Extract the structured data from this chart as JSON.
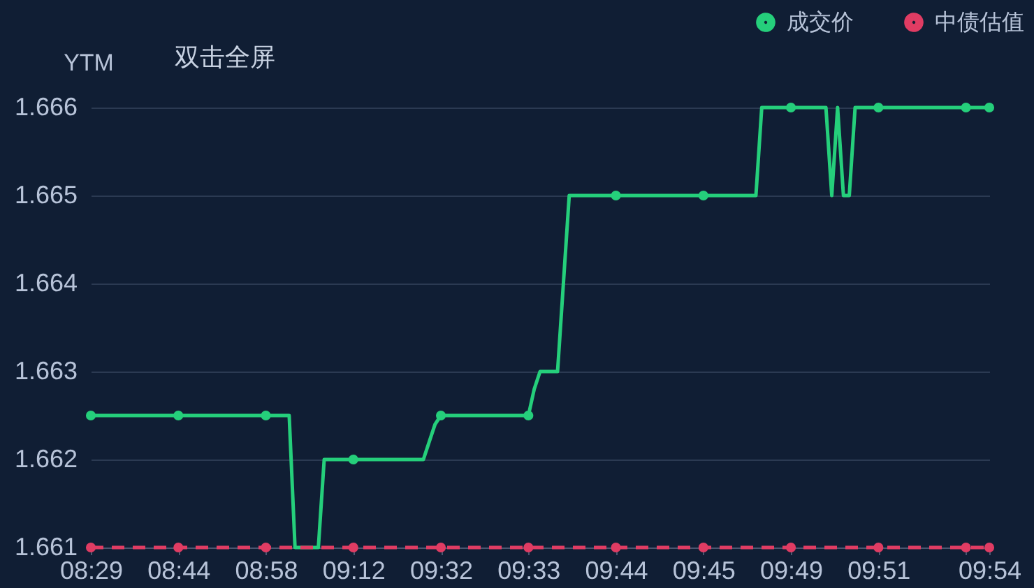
{
  "chart_data": {
    "type": "line",
    "ylabel": "YTM",
    "annotations": [
      "双击全屏"
    ],
    "categories": [
      "08:29",
      null,
      null,
      null,
      null,
      null,
      null,
      null,
      null,
      null,
      null,
      null,
      null,
      null,
      null,
      "08:44",
      null,
      null,
      null,
      null,
      null,
      null,
      null,
      null,
      null,
      null,
      null,
      null,
      null,
      null,
      "08:58",
      null,
      null,
      null,
      null,
      null,
      null,
      null,
      null,
      null,
      null,
      null,
      null,
      null,
      null,
      "09:12",
      null,
      null,
      null,
      null,
      null,
      null,
      null,
      null,
      null,
      null,
      null,
      null,
      null,
      null,
      "09:32",
      null,
      null,
      null,
      null,
      null,
      null,
      null,
      null,
      null,
      null,
      null,
      null,
      null,
      null,
      "09:33",
      null,
      null,
      null,
      null,
      null,
      null,
      null,
      null,
      null,
      null,
      null,
      null,
      null,
      null,
      "09:44",
      null,
      null,
      null,
      null,
      null,
      null,
      null,
      null,
      null,
      null,
      null,
      null,
      null,
      null,
      "09:45",
      null,
      null,
      null,
      null,
      null,
      null,
      null,
      null,
      null,
      null,
      null,
      null,
      null,
      null,
      "09:49",
      null,
      null,
      null,
      null,
      null,
      null,
      null,
      null,
      null,
      null,
      null,
      null,
      null,
      null,
      "09:51",
      null,
      null,
      null,
      null,
      null,
      null,
      null,
      null,
      null,
      null,
      null,
      null,
      null,
      null,
      null,
      null,
      null,
      null,
      "09:54"
    ],
    "series": [
      {
        "name": "成交价",
        "color": "#25cf7b",
        "line_style": "solid",
        "values": [
          1.6625,
          1.6625,
          1.6625,
          1.6625,
          1.6625,
          1.6625,
          1.6625,
          1.6625,
          1.6625,
          1.6625,
          1.6625,
          1.6625,
          1.6625,
          1.6625,
          1.6625,
          1.6625,
          1.6625,
          1.6625,
          1.6625,
          1.6625,
          1.6625,
          1.6625,
          1.6625,
          1.6625,
          1.6625,
          1.6625,
          1.6625,
          1.6625,
          1.6625,
          1.6625,
          1.6625,
          1.6625,
          1.6625,
          1.6625,
          1.6625,
          1.661,
          1.661,
          1.661,
          1.661,
          1.661,
          1.662,
          1.662,
          1.662,
          1.662,
          1.662,
          1.662,
          1.662,
          1.662,
          1.662,
          1.662,
          1.662,
          1.662,
          1.662,
          1.662,
          1.662,
          1.662,
          1.662,
          1.662,
          1.6622,
          1.6624,
          1.6625,
          1.6625,
          1.6625,
          1.6625,
          1.6625,
          1.6625,
          1.6625,
          1.6625,
          1.6625,
          1.6625,
          1.6625,
          1.6625,
          1.6625,
          1.6625,
          1.6625,
          1.6625,
          1.6628,
          1.663,
          1.663,
          1.663,
          1.663,
          1.664,
          1.665,
          1.665,
          1.665,
          1.665,
          1.665,
          1.665,
          1.665,
          1.665,
          1.665,
          1.665,
          1.665,
          1.665,
          1.665,
          1.665,
          1.665,
          1.665,
          1.665,
          1.665,
          1.665,
          1.665,
          1.665,
          1.665,
          1.665,
          1.665,
          1.665,
          1.665,
          1.665,
          1.665,
          1.665,
          1.665,
          1.665,
          1.665,
          1.665,
          1.666,
          1.666,
          1.666,
          1.666,
          1.666,
          1.666,
          1.666,
          1.666,
          1.666,
          1.666,
          1.666,
          1.666,
          1.665,
          1.666,
          1.665,
          1.665,
          1.666,
          1.666,
          1.666,
          1.666,
          1.666,
          1.666,
          1.666,
          1.666,
          1.666,
          1.666,
          1.666,
          1.666,
          1.666,
          1.666,
          1.666,
          1.666,
          1.666,
          1.666,
          1.666,
          1.666,
          1.666,
          1.666,
          1.666,
          1.666
        ]
      },
      {
        "type": "scatter",
        "color": "#25cf7b",
        "marker": "circle",
        "values": [
          1.6625,
          null,
          null,
          null,
          null,
          null,
          null,
          null,
          null,
          null,
          null,
          null,
          null,
          null,
          null,
          1.6625,
          null,
          null,
          null,
          null,
          null,
          null,
          null,
          null,
          null,
          null,
          null,
          null,
          null,
          null,
          1.6625,
          null,
          null,
          null,
          null,
          null,
          null,
          null,
          null,
          null,
          null,
          null,
          null,
          null,
          null,
          1.662,
          null,
          null,
          null,
          null,
          null,
          null,
          null,
          null,
          null,
          null,
          null,
          null,
          null,
          null,
          1.6625,
          null,
          null,
          null,
          null,
          null,
          null,
          null,
          null,
          null,
          null,
          null,
          null,
          null,
          null,
          1.6625,
          null,
          null,
          null,
          null,
          null,
          null,
          null,
          null,
          null,
          null,
          null,
          null,
          null,
          null,
          1.665,
          null,
          null,
          null,
          null,
          null,
          null,
          null,
          null,
          null,
          null,
          null,
          null,
          null,
          null,
          1.665,
          null,
          null,
          null,
          null,
          null,
          null,
          null,
          null,
          null,
          null,
          null,
          null,
          null,
          null,
          1.666,
          null,
          null,
          null,
          null,
          null,
          null,
          null,
          null,
          null,
          null,
          null,
          null,
          null,
          null,
          1.666,
          null,
          null,
          null,
          null,
          null,
          null,
          null,
          null,
          null,
          null,
          null,
          null,
          null,
          null,
          1.666,
          null,
          null,
          null,
          1.666
        ]
      },
      {
        "name": "中债估值",
        "color": "#e03c63",
        "line_style": "dashed",
        "values": [
          1.661,
          1.661,
          1.661,
          1.661,
          1.661,
          1.661,
          1.661,
          1.661,
          1.661,
          1.661,
          1.661,
          1.661,
          1.661,
          1.661,
          1.661,
          1.661,
          1.661,
          1.661,
          1.661,
          1.661,
          1.661,
          1.661,
          1.661,
          1.661,
          1.661,
          1.661,
          1.661,
          1.661,
          1.661,
          1.661,
          1.661,
          1.661,
          1.661,
          1.661,
          1.661,
          1.661,
          1.661,
          1.661,
          1.661,
          1.661,
          1.661,
          1.661,
          1.661,
          1.661,
          1.661,
          1.661,
          1.661,
          1.661,
          1.661,
          1.661,
          1.661,
          1.661,
          1.661,
          1.661,
          1.661,
          1.661,
          1.661,
          1.661,
          1.661,
          1.661,
          1.661,
          1.661,
          1.661,
          1.661,
          1.661,
          1.661,
          1.661,
          1.661,
          1.661,
          1.661,
          1.661,
          1.661,
          1.661,
          1.661,
          1.661,
          1.661,
          1.661,
          1.661,
          1.661,
          1.661,
          1.661,
          1.661,
          1.661,
          1.661,
          1.661,
          1.661,
          1.661,
          1.661,
          1.661,
          1.661,
          1.661,
          1.661,
          1.661,
          1.661,
          1.661,
          1.661,
          1.661,
          1.661,
          1.661,
          1.661,
          1.661,
          1.661,
          1.661,
          1.661,
          1.661,
          1.661,
          1.661,
          1.661,
          1.661,
          1.661,
          1.661,
          1.661,
          1.661,
          1.661,
          1.661,
          1.661,
          1.661,
          1.661,
          1.661,
          1.661,
          1.661,
          1.661,
          1.661,
          1.661,
          1.661,
          1.661,
          1.661,
          1.661,
          1.661,
          1.661,
          1.661,
          1.661,
          1.661,
          1.661,
          1.661,
          1.661,
          1.661,
          1.661,
          1.661,
          1.661,
          1.661,
          1.661,
          1.661,
          1.661,
          1.661,
          1.661,
          1.661,
          1.661,
          1.661,
          1.661,
          1.661,
          1.661,
          1.661,
          1.661,
          1.661
        ]
      },
      {
        "type": "scatter",
        "color": "#e03c63",
        "marker": "circle",
        "values": [
          1.661,
          null,
          null,
          null,
          null,
          null,
          null,
          null,
          null,
          null,
          null,
          null,
          null,
          null,
          null,
          1.661,
          null,
          null,
          null,
          null,
          null,
          null,
          null,
          null,
          null,
          null,
          null,
          null,
          null,
          null,
          1.661,
          null,
          null,
          null,
          null,
          null,
          null,
          null,
          null,
          null,
          null,
          null,
          null,
          null,
          null,
          1.661,
          null,
          null,
          null,
          null,
          null,
          null,
          null,
          null,
          null,
          null,
          null,
          null,
          null,
          null,
          1.661,
          null,
          null,
          null,
          null,
          null,
          null,
          null,
          null,
          null,
          null,
          null,
          null,
          null,
          null,
          1.661,
          null,
          null,
          null,
          null,
          null,
          null,
          null,
          null,
          null,
          null,
          null,
          null,
          null,
          null,
          1.661,
          null,
          null,
          null,
          null,
          null,
          null,
          null,
          null,
          null,
          null,
          null,
          null,
          null,
          null,
          1.661,
          null,
          null,
          null,
          null,
          null,
          null,
          null,
          null,
          null,
          null,
          null,
          null,
          null,
          null,
          1.661,
          null,
          null,
          null,
          null,
          null,
          null,
          null,
          null,
          null,
          null,
          null,
          null,
          null,
          null,
          1.661,
          null,
          null,
          null,
          null,
          null,
          null,
          null,
          null,
          null,
          null,
          null,
          null,
          null,
          null,
          1.661,
          null,
          null,
          null,
          1.661
        ]
      }
    ],
    "ylim": [
      1.661,
      1.666
    ],
    "yticks": [
      1.661,
      1.662,
      1.663,
      1.664,
      1.665,
      1.666
    ],
    "grid": "y",
    "legend": "top right"
  }
}
